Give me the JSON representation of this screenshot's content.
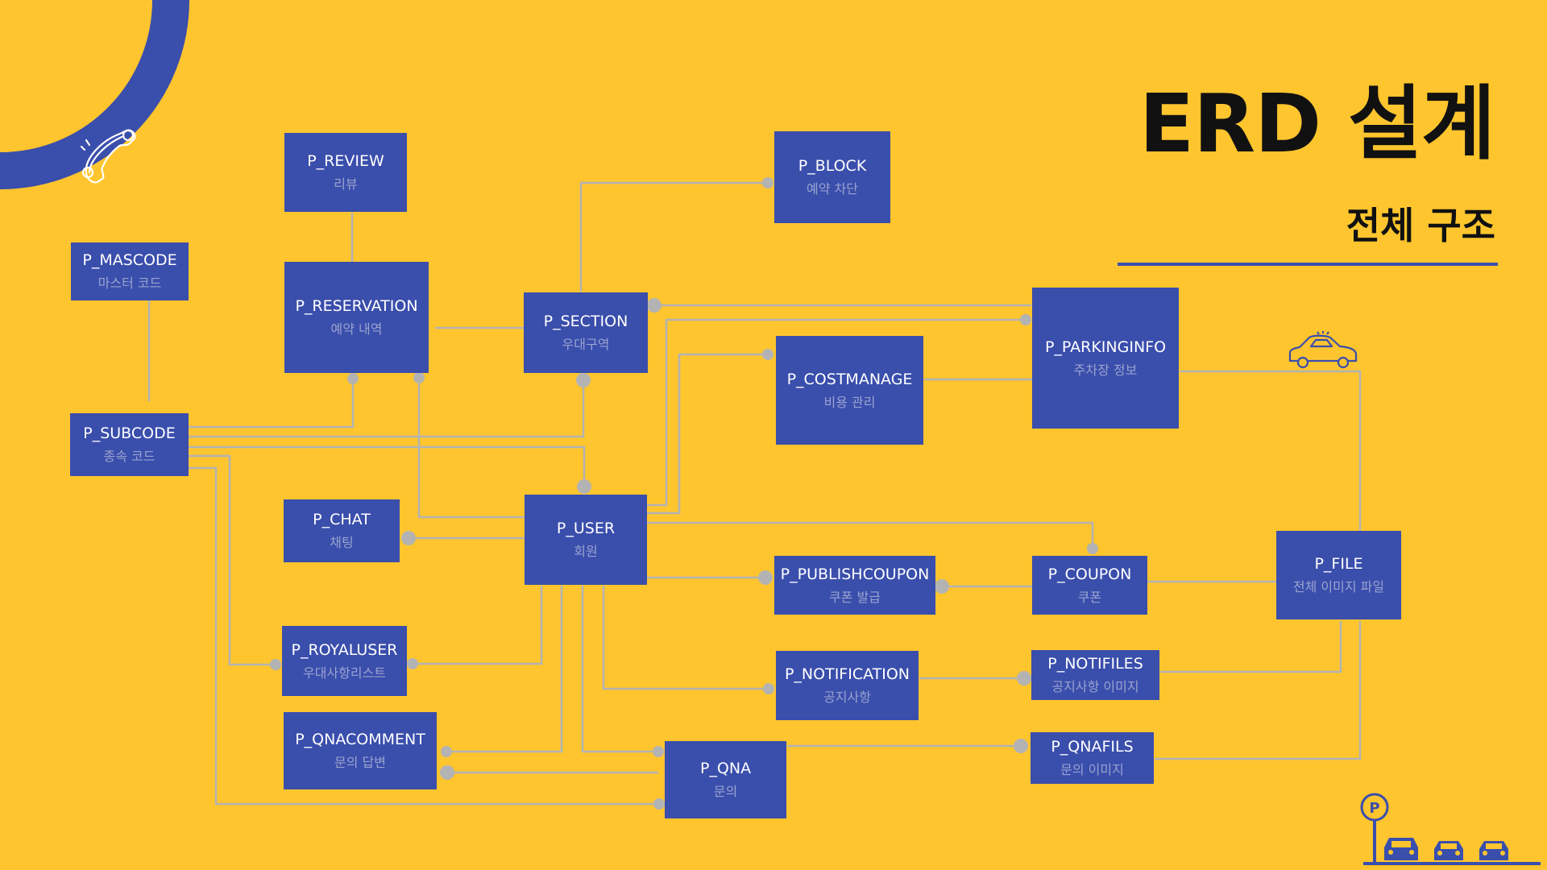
{
  "page": {
    "title": "ERD 설계",
    "subtitle": "전체 구조"
  },
  "colors": {
    "background": "#FEC52E",
    "entity": "#3A4EAC",
    "line": "#B3B3B3",
    "accent": "#3A4EAC"
  },
  "icons": [
    "phone-icon",
    "car-icon",
    "parking-icon"
  ],
  "entities": {
    "review": {
      "name": "P_REVIEW",
      "desc": "리뷰"
    },
    "block": {
      "name": "P_BLOCK",
      "desc": "예약 차단"
    },
    "mascode": {
      "name": "P_MASCODE",
      "desc": "마스터 코드"
    },
    "reservation": {
      "name": "P_RESERVATION",
      "desc": "예약 내역"
    },
    "section": {
      "name": "P_SECTION",
      "desc": "우대구역"
    },
    "parkinginfo": {
      "name": "P_PARKINGINFO",
      "desc": "주차장 정보"
    },
    "costmanage": {
      "name": "P_COSTMANAGE",
      "desc": "비용 관리"
    },
    "subcode": {
      "name": "P_SUBCODE",
      "desc": "종속 코드"
    },
    "chat": {
      "name": "P_CHAT",
      "desc": "채팅"
    },
    "user": {
      "name": "P_USER",
      "desc": "회원"
    },
    "publishcoupon": {
      "name": "P_PUBLISHCOUPON",
      "desc": "쿠폰 발급"
    },
    "coupon": {
      "name": "P_COUPON",
      "desc": "쿠폰"
    },
    "file": {
      "name": "P_FILE",
      "desc": "전체 이미지 파일"
    },
    "royaluser": {
      "name": "P_ROYALUSER",
      "desc": "우대사항리스트"
    },
    "notification": {
      "name": "P_NOTIFICATION",
      "desc": "공지사항"
    },
    "notifiles": {
      "name": "P_NOTIFILES",
      "desc": "공지사항 이미지"
    },
    "qnacomment": {
      "name": "P_QNACOMMENT",
      "desc": "문의 답변"
    },
    "qna": {
      "name": "P_QNA",
      "desc": "문의"
    },
    "qnafils": {
      "name": "P_QNAFILS",
      "desc": "문의 이미지"
    }
  }
}
